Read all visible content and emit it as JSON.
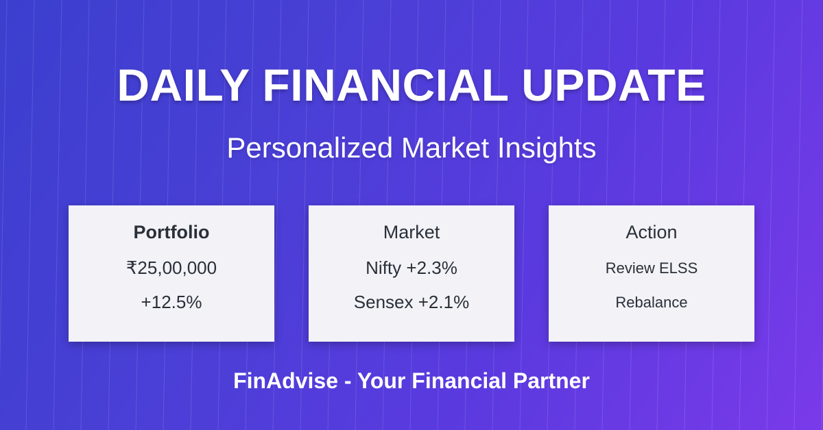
{
  "header": {
    "title": "DAILY FINANCIAL UPDATE",
    "subtitle": "Personalized Market Insights"
  },
  "cards": [
    {
      "title": "Portfolio",
      "line1": "₹25,00,000",
      "line2": "+12.5%"
    },
    {
      "title": "Market",
      "line1": "Nifty +2.3%",
      "line2": "Sensex +2.1%"
    },
    {
      "title": "Action",
      "line1": "Review ELSS",
      "line2": "Rebalance"
    }
  ],
  "footer": {
    "tagline": "FinAdvise - Your Financial Partner"
  },
  "colors": {
    "background_start": "#3b3fce",
    "background_end": "#7a3aea",
    "card_background": "#f2f2f7",
    "card_text": "#2a2f38",
    "text_light": "#ffffff"
  }
}
